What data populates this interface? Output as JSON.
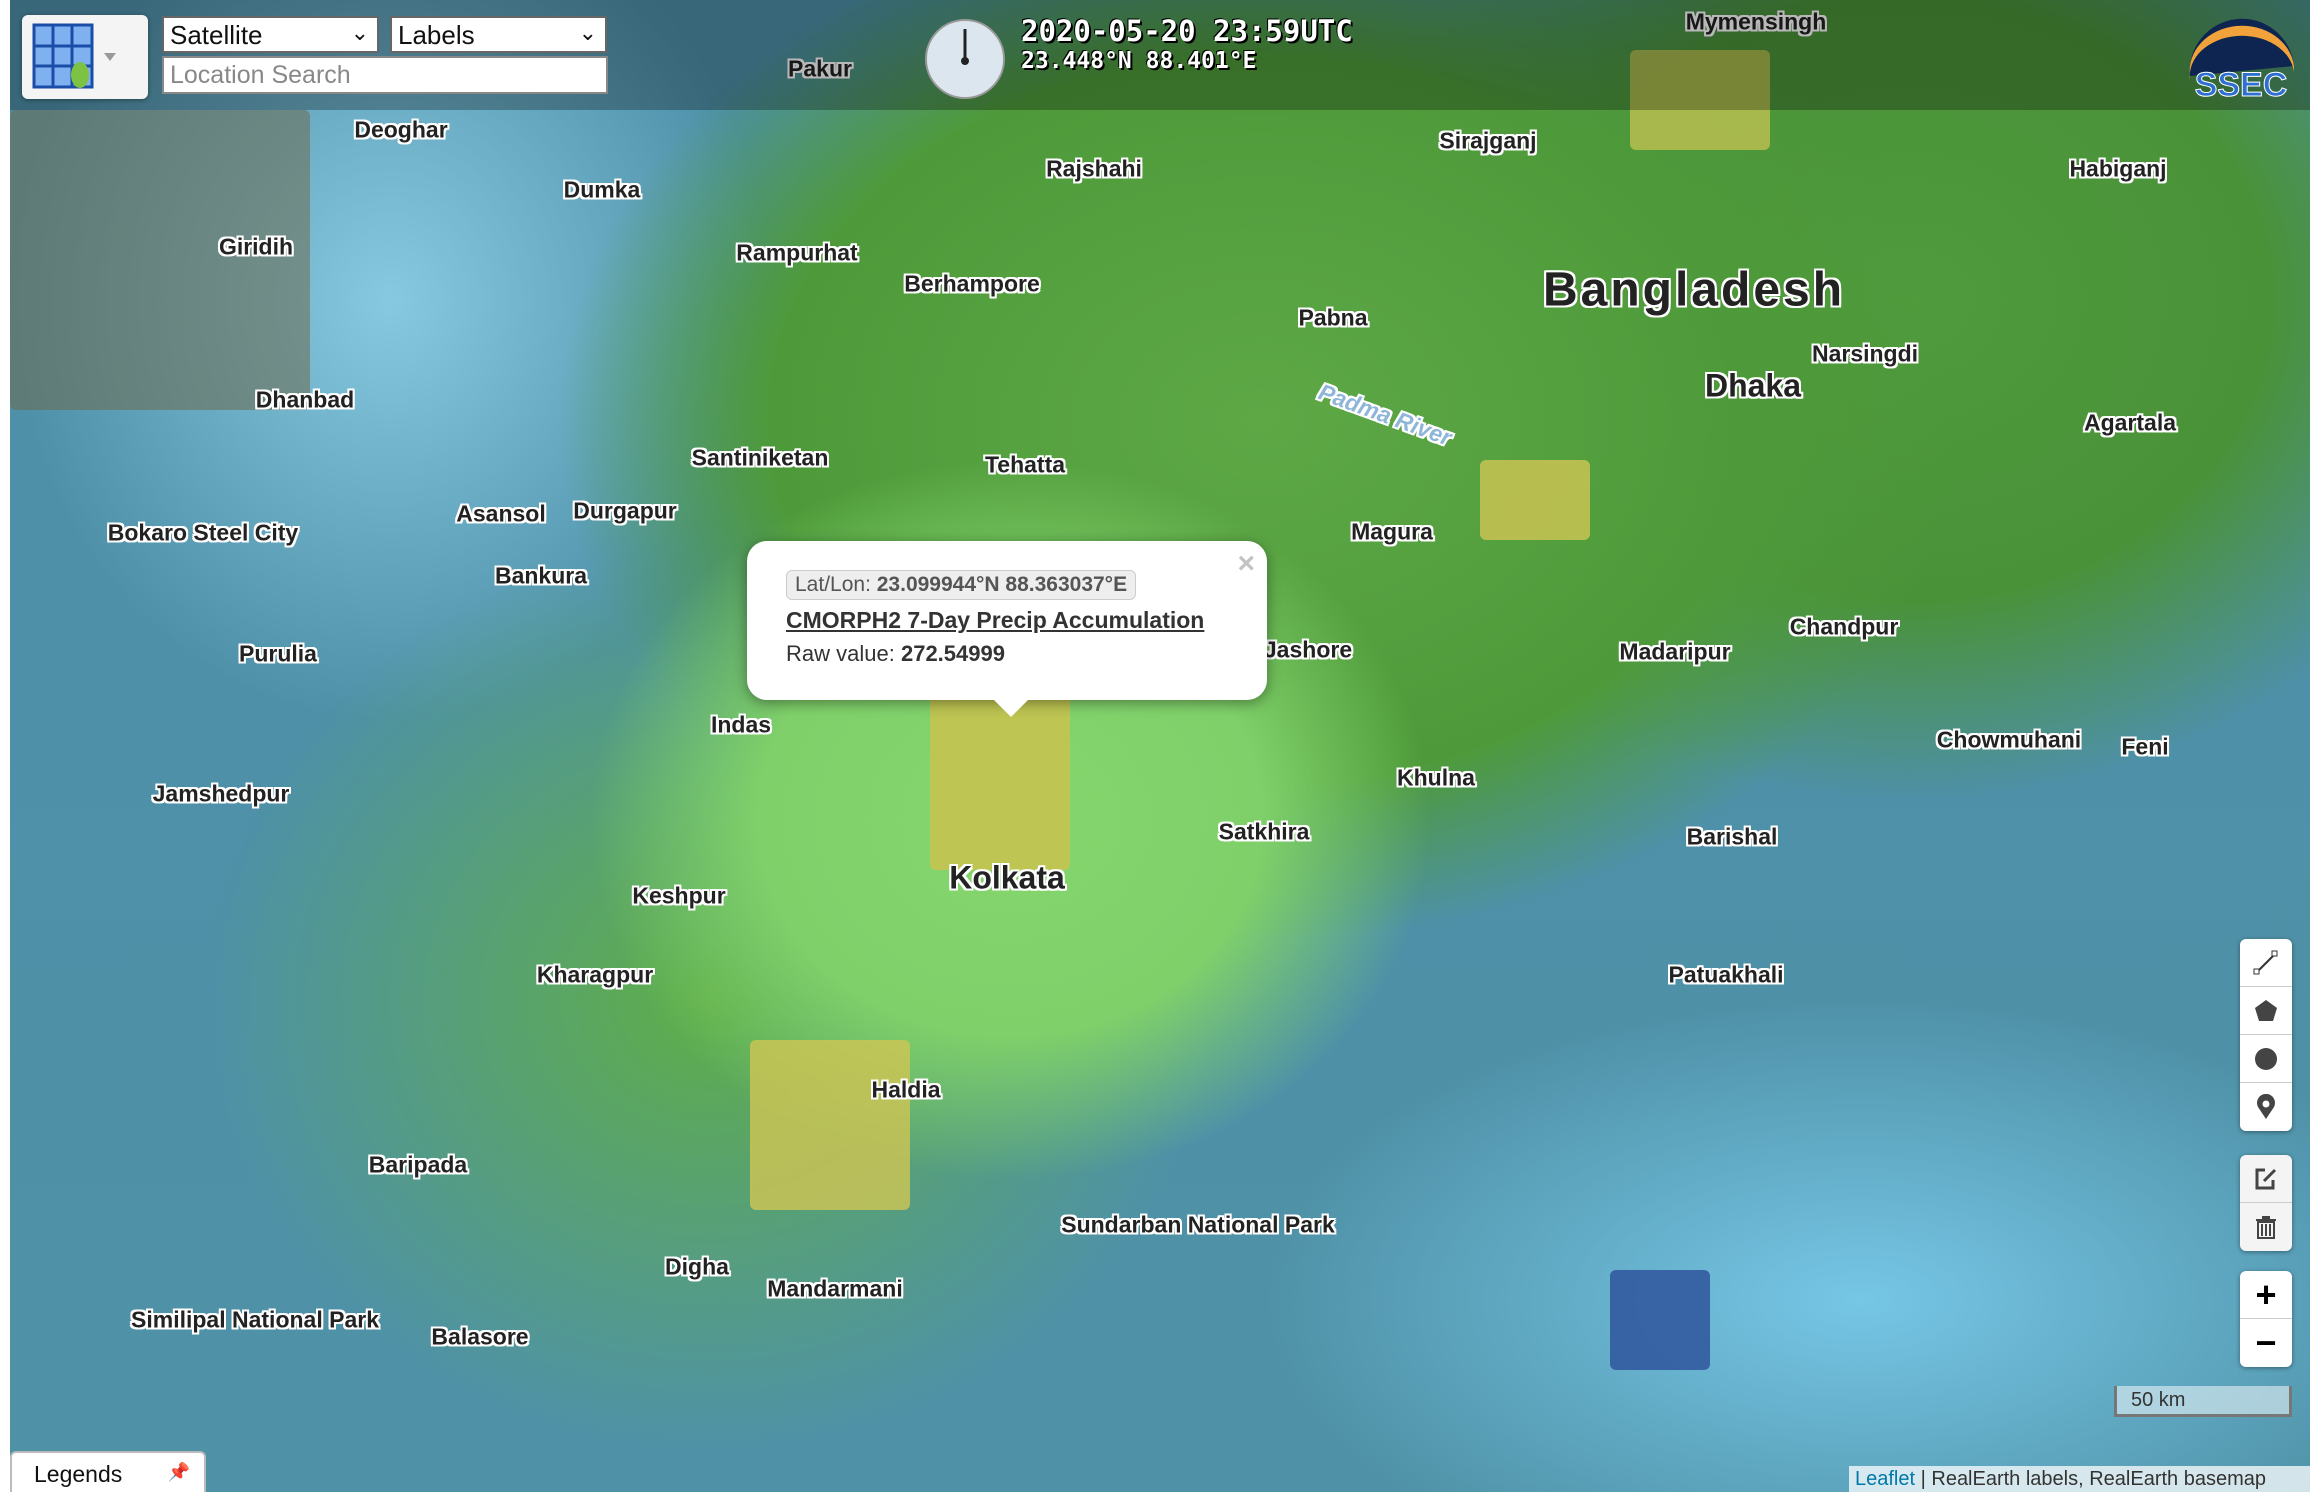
{
  "toolbar": {
    "layer_button_icon": "layer-grid-icon",
    "basemap_select": "Satellite",
    "labels_select": "Labels",
    "search_placeholder": "Location Search"
  },
  "time_display": {
    "datetime": "2020-05-20 23:59UTC",
    "cursor_coords": "23.448°N 88.401°E"
  },
  "logo": "SSEC",
  "popup": {
    "latlon_label": "Lat/Lon:",
    "latlon_value": "23.099944°N 88.363037°E",
    "layer_title": "CMORPH2 7-Day Precip Accumulation",
    "raw_label": "Raw value:",
    "raw_value": "272.54999",
    "close": "×"
  },
  "map_labels": {
    "country": "Bangladesh",
    "dhaka": "Dhaka",
    "kolkata": "Kolkata",
    "khulna": "Khulna",
    "rajshahi": "Rajshahi",
    "mymensingh": "Mymensingh",
    "barishal": "Barishal",
    "jashore": "Jashore",
    "satkhira": "Satkhira",
    "haldia": "Haldia",
    "kharagpur": "Kharagpur",
    "asansol": "Asansol",
    "durgapur": "Durgapur",
    "dhanbad": "Dhanbad",
    "jamshedpur": "Jamshedpur",
    "purulia": "Purulia",
    "bankura": "Bankura",
    "berhampore": "Berhampore",
    "sundarban": "Sundarban National Park",
    "similipal": "Similipal National Park",
    "balasore": "Balasore",
    "baripada": "Baripada",
    "pabna": "Pabna",
    "magura": "Magura",
    "madaripur": "Madaripur",
    "chandpur": "Chandpur",
    "agartala": "Agartala",
    "narsingdi": "Narsingdi",
    "habiganj": "Habiganj",
    "sirajganj": "Sirajganj",
    "padma": "Padma River",
    "patuakhali": "Patuakhali",
    "feni": "Feni",
    "chowmuhani": "Chowmuhani",
    "digha": "Digha",
    "mandarmani": "Mandarmani",
    "deoghar": "Deoghar",
    "dumka": "Dumka",
    "giridih": "Giridih",
    "bokaro": "Bokaro Steel City",
    "indas": "Indas",
    "keshpur": "Keshpur",
    "tehatta": "Tehatta",
    "santiniketan": "Santiniketan",
    "rampurhat": "Rampurhat",
    "pakur": "Pakur"
  },
  "draw_tools": [
    "polyline-icon",
    "polygon-icon",
    "circle-icon",
    "marker-icon"
  ],
  "edit_tools": [
    "edit-icon",
    "trash-icon"
  ],
  "zoom": {
    "in": "+",
    "out": "−"
  },
  "scale": "50 km",
  "attribution": {
    "leaflet": "Leaflet",
    "rest": " | RealEarth labels, RealEarth basemap"
  },
  "legends": {
    "label": "Legends",
    "pin": "pin-icon"
  },
  "colors": {
    "precip_high": "#d9c64a",
    "precip_mid": "#7fd06a",
    "precip_low": "#4e9a3a",
    "precip_min": "#4f92a7"
  }
}
